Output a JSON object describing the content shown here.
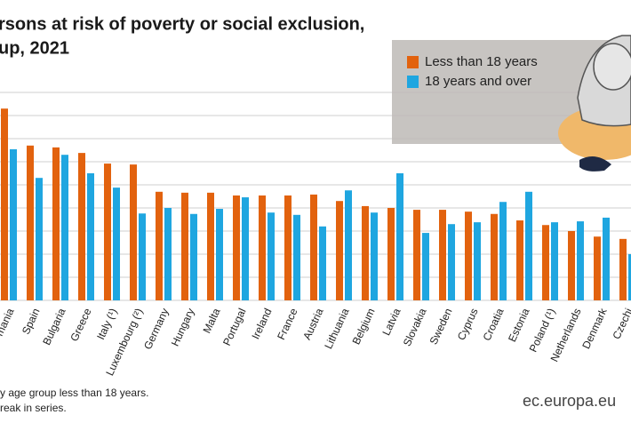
{
  "chart_data": {
    "type": "bar",
    "title": "rsons at risk of poverty or social exclusion,",
    "subtitle": "up, 2021",
    "categories": [
      "mania",
      "Spain",
      "Bulgaria",
      "Greece",
      "Italy (¹)",
      "Luxembourg (²)",
      "Germany",
      "Hungary",
      "Malta",
      "Portugal",
      "Ireland",
      "France",
      "Austria",
      "Lithuania",
      "Belgium",
      "Latvia",
      "Slovakia",
      "Sweden",
      "Cyprus",
      "Croatia",
      "Estonia",
      "Poland (¹)",
      "Netherlands",
      "Denmark",
      "Czechi"
    ],
    "series": [
      {
        "name": "Less than 18 years",
        "color": "#e2620e",
        "values": [
          41.5,
          33.5,
          33.1,
          31.9,
          29.6,
          29.4,
          23.5,
          23.3,
          23.3,
          22.7,
          22.7,
          22.7,
          22.9,
          21.5,
          20.4,
          20.0,
          19.6,
          19.6,
          19.2,
          18.7,
          17.3,
          16.3,
          15.0,
          13.8,
          13.3
        ]
      },
      {
        "name": "18 years and over",
        "color": "#1fa6e0",
        "values": [
          32.7,
          26.5,
          31.5,
          27.5,
          24.4,
          18.8,
          20.0,
          18.7,
          19.8,
          22.3,
          19.0,
          18.5,
          16.0,
          23.8,
          19.0,
          27.5,
          14.6,
          16.5,
          16.9,
          21.3,
          23.5,
          16.9,
          17.1,
          17.9,
          10.0
        ]
      }
    ],
    "ylim": [
      0,
      45
    ],
    "yticks": [
      0,
      5,
      10,
      15,
      20,
      25,
      30,
      35,
      40,
      45
    ],
    "grid": true,
    "tick_labels": false,
    "legend": "top-right",
    "footnotes": [
      "y age group less than 18 years.",
      "reak in series."
    ],
    "source": "ec.europa.eu"
  }
}
